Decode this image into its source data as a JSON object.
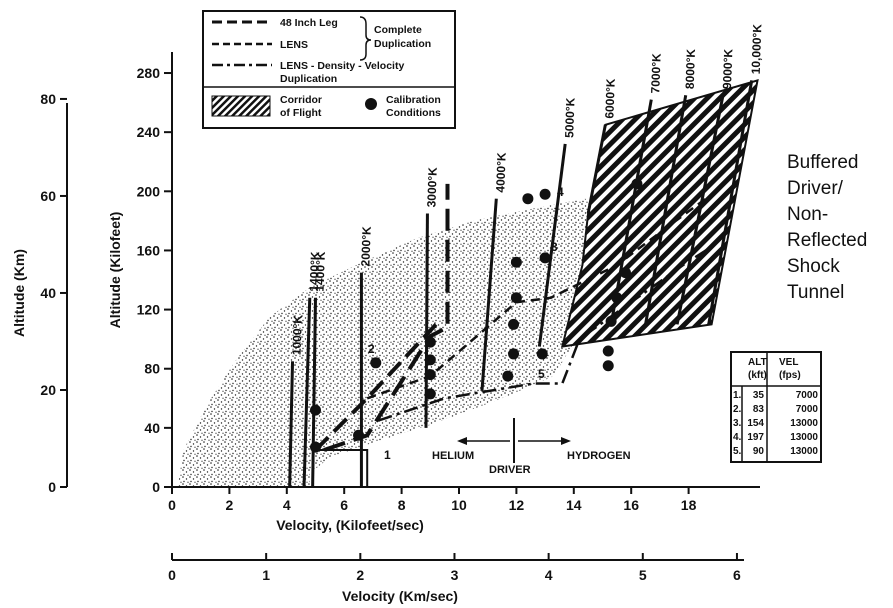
{
  "chart_data": {
    "type": "scatter",
    "xlabel": "Velocity, (Kilofeet/sec)",
    "ylabel": "Altitude (Kilofeet)",
    "xlim": [
      0,
      20
    ],
    "ylim": [
      0,
      280
    ],
    "x_ticks": [
      "0",
      "2",
      "4",
      "6",
      "8",
      "10",
      "12",
      "14",
      "16",
      "18"
    ],
    "y_ticks": [
      "0",
      "40",
      "80",
      "120",
      "160",
      "200",
      "240",
      "280"
    ],
    "secondary_x": {
      "label": "Velocity (Km/sec)",
      "ticks": [
        "0",
        "1",
        "2",
        "3",
        "4",
        "5",
        "6"
      ]
    },
    "secondary_y": {
      "label": "Altitude (Km)",
      "ticks": [
        "0",
        "20",
        "40",
        "60",
        "80"
      ]
    },
    "side_title": [
      "Buffered",
      "Driver/",
      "Non-",
      "Reflected",
      "Shock",
      "Tunnel"
    ],
    "legend": {
      "line_48": "48 Inch Leg",
      "line_lens": "LENS",
      "line_dv": "LENS - Density - Velocity",
      "line_dv2": "Duplication",
      "complete": "Complete",
      "duplication": "Duplication",
      "corridor1": "Corridor",
      "corridor2": "of Flight",
      "calib1": "Calibration",
      "calib2": "Conditions"
    },
    "isotherms": [
      {
        "label": "1000°K",
        "x1": 4.1,
        "y1": 0,
        "x2": 4.2,
        "y2": 85
      },
      {
        "label": "1400°K",
        "x1": 4.6,
        "y1": 0,
        "x2": 4.8,
        "y2": 128
      },
      {
        "label": "1400°K",
        "x1": 4.9,
        "y1": 0,
        "x2": 5.0,
        "y2": 128
      },
      {
        "label": "2000°K",
        "x1": 6.6,
        "y1": 0,
        "x2": 6.6,
        "y2": 145
      },
      {
        "label": "3000°K",
        "x1": 8.85,
        "y1": 40,
        "x2": 8.9,
        "y2": 185
      },
      {
        "label": "4000°K",
        "x1": 10.8,
        "y1": 65,
        "x2": 11.3,
        "y2": 195
      },
      {
        "label": "5000°K",
        "x1": 12.8,
        "y1": 95,
        "x2": 13.7,
        "y2": 232
      },
      {
        "label": "6000°K",
        "x1": 14.5,
        "y1": 185,
        "x2": 15.1,
        "y2": 245
      },
      {
        "label": "7000°K",
        "x1": 15.3,
        "y1": 110,
        "x2": 16.7,
        "y2": 262
      },
      {
        "label": "8000°K",
        "x1": 16.5,
        "y1": 110,
        "x2": 17.9,
        "y2": 265
      },
      {
        "label": "9000°K",
        "x1": 17.6,
        "y1": 110,
        "x2": 19.2,
        "y2": 265
      },
      {
        "label": "10,000°K",
        "x1": 18.7,
        "y1": 110,
        "x2": 20.2,
        "y2": 275
      }
    ],
    "calibration_points": [
      {
        "x": 5.0,
        "y": 27
      },
      {
        "x": 5.0,
        "y": 52
      },
      {
        "x": 6.5,
        "y": 35
      },
      {
        "x": 7.1,
        "y": 84
      },
      {
        "x": 9.0,
        "y": 63
      },
      {
        "x": 9.0,
        "y": 76
      },
      {
        "x": 9.0,
        "y": 86
      },
      {
        "x": 9.0,
        "y": 98
      },
      {
        "x": 11.7,
        "y": 75
      },
      {
        "x": 11.9,
        "y": 90
      },
      {
        "x": 11.9,
        "y": 110
      },
      {
        "x": 12.0,
        "y": 128
      },
      {
        "x": 12.0,
        "y": 152
      },
      {
        "x": 12.4,
        "y": 195
      },
      {
        "x": 12.9,
        "y": 90
      },
      {
        "x": 13.0,
        "y": 155
      },
      {
        "x": 13.0,
        "y": 198
      },
      {
        "x": 15.2,
        "y": 82
      },
      {
        "x": 15.2,
        "y": 92
      },
      {
        "x": 15.3,
        "y": 112
      },
      {
        "x": 15.5,
        "y": 128
      },
      {
        "x": 15.8,
        "y": 145
      },
      {
        "x": 16.2,
        "y": 205
      }
    ],
    "point_labels": [
      "1",
      "2",
      "3",
      "4",
      "5"
    ],
    "annotations": {
      "helium": "HELIUM",
      "driver": "DRIVER",
      "hydrogen": "HYDROGEN"
    },
    "table": {
      "headers": [
        [
          "ALT",
          "(kft)"
        ],
        [
          "VEL",
          "(fps)"
        ]
      ],
      "rows": [
        [
          "1.",
          "35",
          "7000"
        ],
        [
          "2.",
          "83",
          "7000"
        ],
        [
          "3.",
          "154",
          "13000"
        ],
        [
          "4.",
          "197",
          "13000"
        ],
        [
          "5.",
          "90",
          "13000"
        ]
      ]
    },
    "grid": false,
    "legend_position": "top-left"
  }
}
